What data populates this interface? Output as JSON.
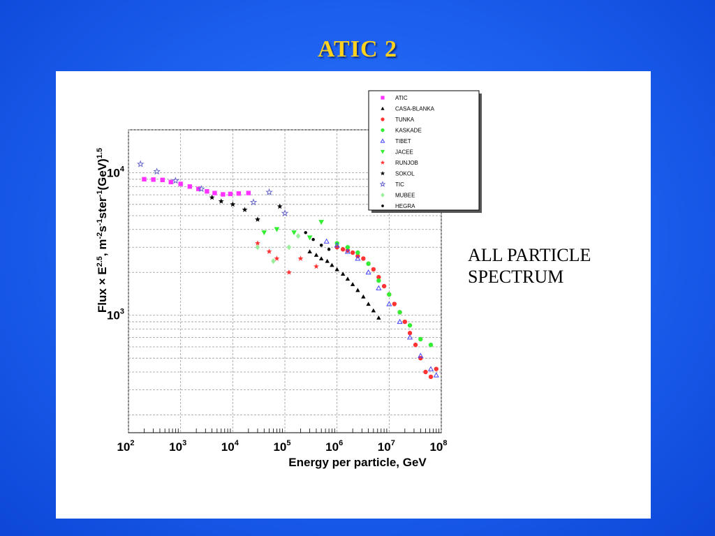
{
  "slide": {
    "title": "ATIC  2",
    "side_text_line1": "ALL  PARTICLE",
    "side_text_line2": "SPECTRUM"
  },
  "colors": {
    "title": "#ffd21f",
    "background": "#1f63f2"
  },
  "chart_data": {
    "type": "scatter",
    "xscale": "log",
    "yscale": "log",
    "xlim": [
      100,
      100000000
    ],
    "ylim": [
      150,
      20000
    ],
    "grid": true,
    "legend_position": "top-right",
    "xlabel": "Energy per particle, GeV",
    "ylabel": "Flux × E2.5, m-2s-1ster-1(GeV)1.5",
    "x_ticks": [
      {
        "base": "10",
        "exp": "2",
        "value": 100
      },
      {
        "base": "10",
        "exp": "3",
        "value": 1000
      },
      {
        "base": "10",
        "exp": "4",
        "value": 10000
      },
      {
        "base": "10",
        "exp": "5",
        "value": 100000
      },
      {
        "base": "10",
        "exp": "6",
        "value": 1000000
      },
      {
        "base": "10",
        "exp": "7",
        "value": 10000000
      },
      {
        "base": "10",
        "exp": "8",
        "value": 100000000
      }
    ],
    "y_ticks": [
      {
        "base": "10",
        "exp": "3",
        "value": 1000
      },
      {
        "base": "10",
        "exp": "4",
        "value": 10000
      }
    ],
    "series": [
      {
        "name": "ATIC",
        "color": "#ff33ff",
        "marker": "square",
        "x": [
          200,
          300,
          450,
          650,
          1000,
          1500,
          2200,
          3200,
          4500,
          6500,
          9000,
          13000,
          20000
        ],
        "y": [
          9000,
          8950,
          8900,
          8600,
          8350,
          8000,
          7700,
          7400,
          7200,
          7050,
          7100,
          7150,
          7200
        ]
      },
      {
        "name": "CASA-BLANKA",
        "color": "#000000",
        "marker": "triangle",
        "x": [
          300000,
          400000,
          500000,
          650000,
          800000,
          1000000,
          1300000,
          1600000,
          2000000,
          2500000,
          3200000,
          4000000,
          5000000,
          6300000
        ],
        "y": [
          2800,
          2650,
          2500,
          2400,
          2250,
          2100,
          1950,
          1800,
          1650,
          1500,
          1350,
          1200,
          1080,
          960
        ]
      },
      {
        "name": "TUNKA",
        "color": "#ff3333",
        "marker": "circle",
        "x": [
          1000000,
          1300000,
          1600000,
          2000000,
          2500000,
          3200000,
          4000000,
          5000000,
          6300000,
          8000000,
          10000000,
          12600000,
          16000000,
          20000000,
          25000000,
          32000000,
          40000000,
          50000000,
          63000000,
          80000000
        ],
        "y": [
          3000,
          2900,
          2850,
          2750,
          2600,
          2500,
          2300,
          2100,
          1850,
          1600,
          1400,
          1200,
          1050,
          900,
          750,
          620,
          500,
          400,
          370,
          420
        ]
      },
      {
        "name": "KASKADE",
        "color": "#33ee33",
        "marker": "circle",
        "x": [
          1000000,
          1600000,
          2500000,
          4000000,
          6300000,
          10000000,
          16000000,
          25000000,
          40000000,
          63000000
        ],
        "y": [
          3200,
          3000,
          2750,
          2300,
          1750,
          1400,
          1050,
          850,
          680,
          620
        ]
      },
      {
        "name": "TIBET",
        "color": "#4444ff",
        "marker": "triangle-open",
        "x": [
          630000,
          1000000,
          1600000,
          2500000,
          4000000,
          6300000,
          10000000,
          16000000,
          25000000,
          40000000,
          63000000,
          80000000
        ],
        "y": [
          3300,
          3100,
          2800,
          2500,
          2000,
          1550,
          1200,
          900,
          700,
          520,
          420,
          380
        ]
      },
      {
        "name": "JACEE",
        "color": "#33ee33",
        "marker": "triangle-down",
        "x": [
          40000,
          70000,
          150000,
          300000,
          500000
        ],
        "y": [
          3800,
          4000,
          3800,
          3500,
          4500
        ]
      },
      {
        "name": "RUNJOB",
        "color": "#ff3333",
        "marker": "star",
        "x": [
          30000,
          50000,
          70000,
          120000,
          200000,
          400000
        ],
        "y": [
          3200,
          2800,
          2500,
          2000,
          2500,
          2200
        ]
      },
      {
        "name": "SOKOL",
        "color": "#000000",
        "marker": "star",
        "x": [
          4000,
          6000,
          10000,
          17000,
          30000,
          80000
        ],
        "y": [
          6700,
          6300,
          6000,
          5500,
          4700,
          5800
        ]
      },
      {
        "name": "TIC",
        "color": "#6666cc",
        "marker": "star-open",
        "x": [
          170,
          350,
          800,
          2500,
          25000,
          50000,
          100000
        ],
        "y": [
          11500,
          10200,
          8800,
          7700,
          6200,
          7300,
          5200
        ]
      },
      {
        "name": "MUBEE",
        "color": "#99ee99",
        "marker": "diamond",
        "x": [
          30000,
          60000,
          120000,
          180000
        ],
        "y": [
          3000,
          2400,
          3000,
          3600
        ]
      },
      {
        "name": "HEGRA",
        "color": "#000000",
        "marker": "dot",
        "x": [
          250000,
          350000,
          500000,
          700000
        ],
        "y": [
          3800,
          3400,
          3100,
          2900
        ]
      }
    ]
  }
}
